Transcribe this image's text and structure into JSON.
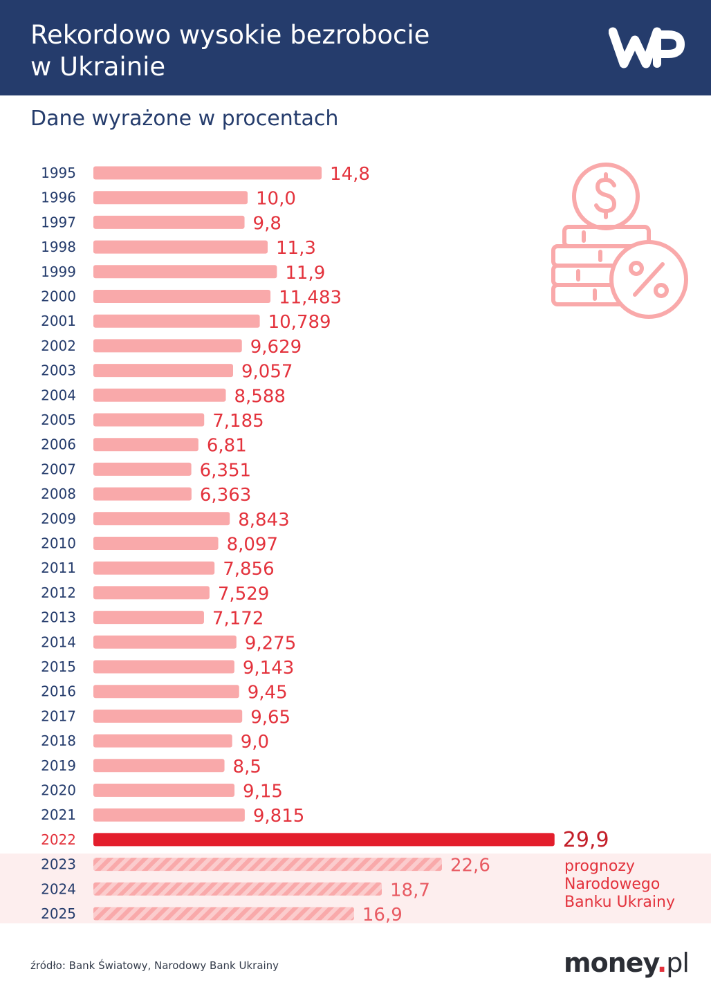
{
  "header": {
    "title": "Rekordowo wysokie bezrobocie\nw Ukrainie",
    "logo": "WP"
  },
  "subtitle": "Dane wyrażone w procentach",
  "icon": "coins-dollar-percent-icon",
  "forecast_note": "prognozy\nNarodowego\nBanku Ukrainy",
  "footer": {
    "source": "źródło: Bank Światowy, Narodowy Bank Ukrainy",
    "brand_main": "money",
    "brand_dot": ".",
    "brand_tld": "pl"
  },
  "colors": {
    "header_bg": "#253c6c",
    "bar": "#f9a9aa",
    "bar_highlight": "#e31e2c",
    "value_text": "#e3323c",
    "forecast_band": "#fdeeee"
  },
  "chart_data": {
    "type": "bar",
    "orientation": "horizontal",
    "title": "Rekordowo wysokie bezrobocie w Ukrainie",
    "subtitle": "Dane wyrażone w procentach",
    "categories": [
      "1995",
      "1996",
      "1997",
      "1998",
      "1999",
      "2000",
      "2001",
      "2002",
      "2003",
      "2004",
      "2005",
      "2006",
      "2007",
      "2008",
      "2009",
      "2010",
      "2011",
      "2012",
      "2013",
      "2014",
      "2015",
      "2016",
      "2017",
      "2018",
      "2019",
      "2020",
      "2021",
      "2022",
      "2023",
      "2024",
      "2025"
    ],
    "values": [
      14.8,
      10.0,
      9.8,
      11.3,
      11.9,
      11.483,
      10.789,
      9.629,
      9.057,
      8.588,
      7.185,
      6.81,
      6.351,
      6.363,
      8.843,
      8.097,
      7.856,
      7.529,
      7.172,
      9.275,
      9.143,
      9.45,
      9.65,
      9.0,
      8.5,
      9.15,
      9.815,
      29.9,
      22.6,
      18.7,
      16.9
    ],
    "labels": [
      "14,8",
      "10,0",
      "9,8",
      "11,3",
      "11,9",
      "11,483",
      "10,789",
      "9,629",
      "9,057",
      "8,588",
      "7,185",
      "6,81",
      "6,351",
      "6,363",
      "8,843",
      "8,097",
      "7,856",
      "7,529",
      "7,172",
      "9,275",
      "9,143",
      "9,45",
      "9,65",
      "9,0",
      "8,5",
      "9,15",
      "9,815",
      "29,9",
      "22,6",
      "18,7",
      "16,9"
    ],
    "highlight": "2022",
    "forecast": [
      "2023",
      "2024",
      "2025"
    ],
    "xlim": [
      0,
      30
    ],
    "xlabel": "",
    "ylabel": ""
  }
}
